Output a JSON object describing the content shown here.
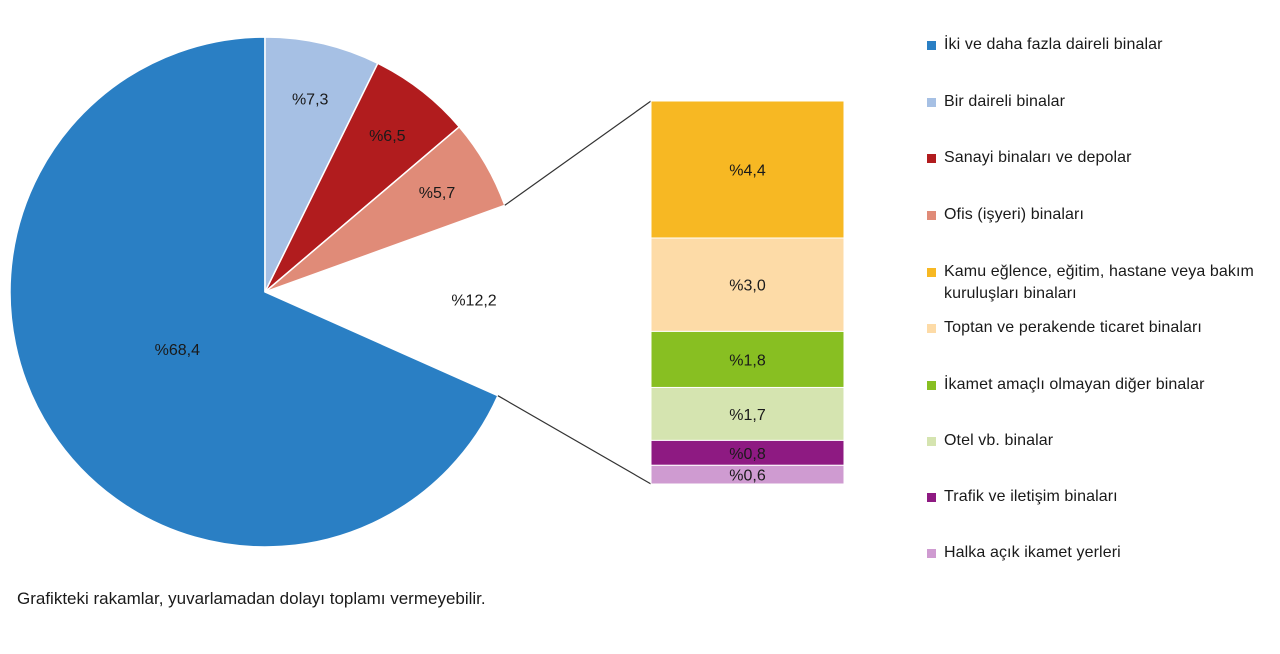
{
  "chart_data": {
    "type": "bar-of-pie",
    "pie": [
      {
        "label": "%68,4",
        "value": 68.4,
        "color": "#2a7fc4",
        "legend": "İki ve daha fazla daireli binalar"
      },
      {
        "label": "%7,3",
        "value": 7.3,
        "color": "#a6c0e4",
        "legend": "Bir daireli binalar"
      },
      {
        "label": "%6,5",
        "value": 6.5,
        "color": "#b11c1e",
        "legend": "Sanayi binaları ve depolar"
      },
      {
        "label": "%5,7",
        "value": 5.7,
        "color": "#e08b78",
        "legend": "Ofis (işyeri) binaları"
      },
      {
        "label": "%12,2",
        "value": 12.2,
        "color": "#ffffff",
        "legend": ""
      }
    ],
    "bar": [
      {
        "label": "%4,4",
        "value": 4.4,
        "color": "#f7b823",
        "legend": "Kamu eğlence, eğitim, hastane veya bakım kuruluşları binaları"
      },
      {
        "label": "%3,0",
        "value": 3.0,
        "color": "#fddba7",
        "legend": "Toptan ve perakende ticaret binaları"
      },
      {
        "label": "%1,8",
        "value": 1.8,
        "color": "#88bf22",
        "legend": "İkamet amaçlı olmayan diğer binalar"
      },
      {
        "label": "%1,7",
        "value": 1.7,
        "color": "#d5e4b0",
        "legend": "Otel vb. binalar"
      },
      {
        "label": "%0,8",
        "value": 0.8,
        "color": "#8e1a82",
        "legend": "Trafik ve iletişim binaları"
      },
      {
        "label": "%0,6",
        "value": 0.6,
        "color": "#cf9bd1",
        "legend": "Halka açık ikamet yerleri"
      }
    ]
  },
  "legend": [
    {
      "label": "İki ve daha fazla daireli binalar",
      "color": "#2a7fc4"
    },
    {
      "label": "Bir daireli binalar",
      "color": "#a6c0e4"
    },
    {
      "label": "Sanayi binaları ve depolar",
      "color": "#b11c1e"
    },
    {
      "label": "Ofis (işyeri) binaları",
      "color": "#e08b78"
    },
    {
      "label": "Kamu eğlence, eğitim, hastane veya bakım kuruluşları binaları",
      "color": "#f7b823"
    },
    {
      "label": "Toptan ve perakende ticaret binaları",
      "color": "#fddba7"
    },
    {
      "label": "İkamet amaçlı olmayan diğer binalar",
      "color": "#88bf22"
    },
    {
      "label": "Otel vb. binalar",
      "color": "#d5e4b0"
    },
    {
      "label": "Trafik ve iletişim binaları",
      "color": "#8e1a82"
    },
    {
      "label": "Halka açık ikamet yerleri",
      "color": "#cf9bd1"
    }
  ],
  "footnote": "Grafikteki rakamlar, yuvarlamadan dolayı toplamı vermeyebilir."
}
